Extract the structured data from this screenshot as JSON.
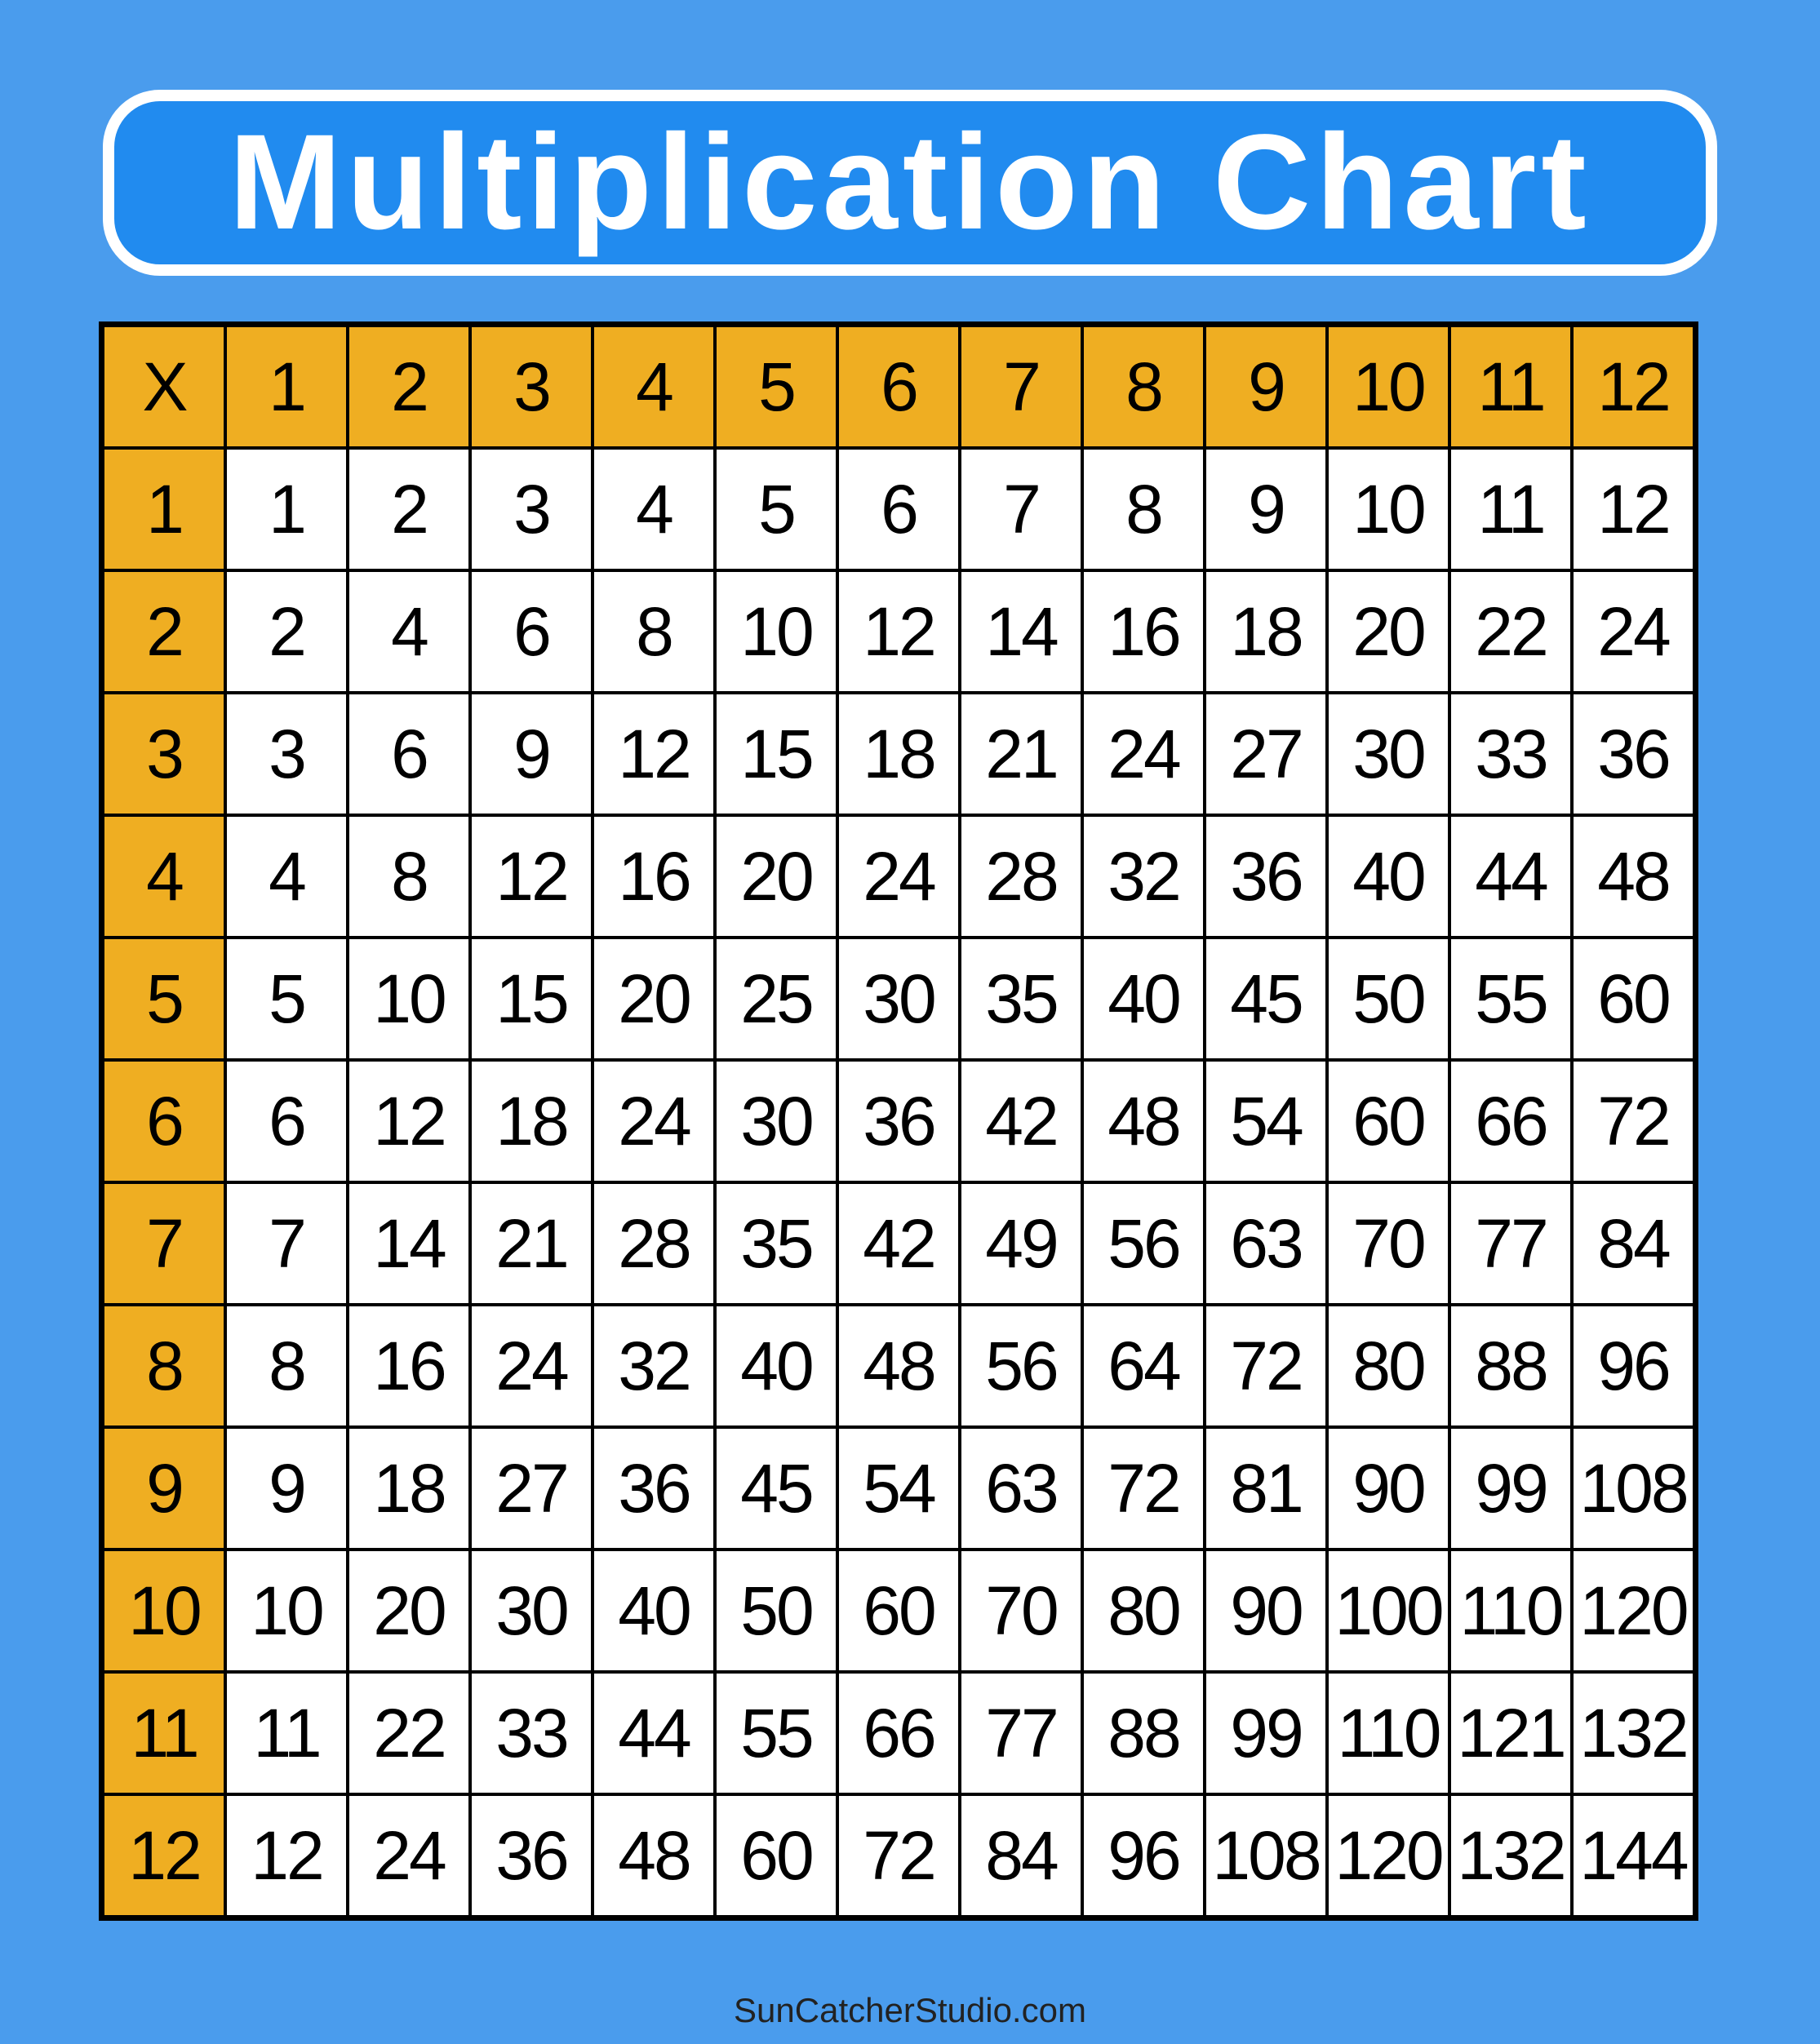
{
  "title": "Multiplication Chart",
  "colors": {
    "background": "#4a9ced",
    "title_box": "#218bef",
    "header": "#efae22"
  },
  "table": {
    "corner": "X",
    "column_headers": [
      "1",
      "2",
      "3",
      "4",
      "5",
      "6",
      "7",
      "8",
      "9",
      "10",
      "11",
      "12"
    ],
    "rows": [
      {
        "header": "1",
        "cells": [
          "1",
          "2",
          "3",
          "4",
          "5",
          "6",
          "7",
          "8",
          "9",
          "10",
          "11",
          "12"
        ]
      },
      {
        "header": "2",
        "cells": [
          "2",
          "4",
          "6",
          "8",
          "10",
          "12",
          "14",
          "16",
          "18",
          "20",
          "22",
          "24"
        ]
      },
      {
        "header": "3",
        "cells": [
          "3",
          "6",
          "9",
          "12",
          "15",
          "18",
          "21",
          "24",
          "27",
          "30",
          "33",
          "36"
        ]
      },
      {
        "header": "4",
        "cells": [
          "4",
          "8",
          "12",
          "16",
          "20",
          "24",
          "28",
          "32",
          "36",
          "40",
          "44",
          "48"
        ]
      },
      {
        "header": "5",
        "cells": [
          "5",
          "10",
          "15",
          "20",
          "25",
          "30",
          "35",
          "40",
          "45",
          "50",
          "55",
          "60"
        ]
      },
      {
        "header": "6",
        "cells": [
          "6",
          "12",
          "18",
          "24",
          "30",
          "36",
          "42",
          "48",
          "54",
          "60",
          "66",
          "72"
        ]
      },
      {
        "header": "7",
        "cells": [
          "7",
          "14",
          "21",
          "28",
          "35",
          "42",
          "49",
          "56",
          "63",
          "70",
          "77",
          "84"
        ]
      },
      {
        "header": "8",
        "cells": [
          "8",
          "16",
          "24",
          "32",
          "40",
          "48",
          "56",
          "64",
          "72",
          "80",
          "88",
          "96"
        ]
      },
      {
        "header": "9",
        "cells": [
          "9",
          "18",
          "27",
          "36",
          "45",
          "54",
          "63",
          "72",
          "81",
          "90",
          "99",
          "108"
        ]
      },
      {
        "header": "10",
        "cells": [
          "10",
          "20",
          "30",
          "40",
          "50",
          "60",
          "70",
          "80",
          "90",
          "100",
          "110",
          "120"
        ]
      },
      {
        "header": "11",
        "cells": [
          "11",
          "22",
          "33",
          "44",
          "55",
          "66",
          "77",
          "88",
          "99",
          "110",
          "121",
          "132"
        ]
      },
      {
        "header": "12",
        "cells": [
          "12",
          "24",
          "36",
          "48",
          "60",
          "72",
          "84",
          "96",
          "108",
          "120",
          "132",
          "144"
        ]
      }
    ]
  },
  "footer": "SunCatcherStudio.com"
}
